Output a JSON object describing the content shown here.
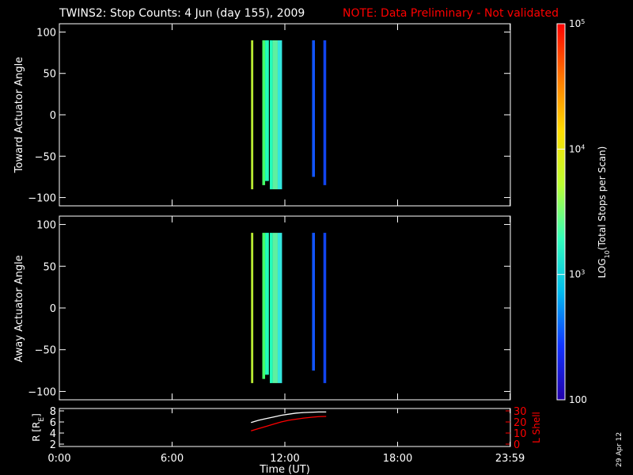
{
  "title": {
    "main": "TWINS2: Stop Counts:  4 Jun (day 155), 2009",
    "note": "NOTE: Data Preliminary - Not validated"
  },
  "side_label": "29 Apr 12",
  "colors": {
    "background": "#000000",
    "axes": "#ffffff",
    "note": "#ff0000",
    "r_line": "#ffffff",
    "l_shell_line": "#ff0000"
  },
  "chart_data": [
    {
      "type": "heatmap",
      "ylabel": "Toward Actuator Angle",
      "ylim": [
        -110,
        110
      ],
      "yticks": [
        100,
        50,
        0,
        -50,
        -100
      ],
      "xlim": [
        0,
        24
      ],
      "blocks": [
        {
          "t0": 10.2,
          "t1": 10.32,
          "a0": -90,
          "a1": 90,
          "color": "#b9ea33"
        },
        {
          "t0": 10.8,
          "t1": 10.95,
          "a0": -85,
          "a1": 90,
          "color": "#44ff66"
        },
        {
          "t0": 10.95,
          "t1": 11.15,
          "a0": -80,
          "a1": 90,
          "color": "#22ffbb"
        },
        {
          "t0": 11.2,
          "t1": 11.35,
          "a0": -90,
          "a1": 90,
          "color": "#22ffbb"
        },
        {
          "t0": 11.35,
          "t1": 11.62,
          "a0": -90,
          "a1": 90,
          "color": "#5ef0a0"
        },
        {
          "t0": 11.62,
          "t1": 11.85,
          "a0": -90,
          "a1": 90,
          "color": "#33e6dd"
        },
        {
          "t0": 13.45,
          "t1": 13.6,
          "a0": -75,
          "a1": 90,
          "color": "#1155ff"
        },
        {
          "t0": 14.05,
          "t1": 14.2,
          "a0": -85,
          "a1": 90,
          "color": "#1144ee"
        }
      ]
    },
    {
      "type": "heatmap",
      "ylabel": "Away Actuator Angle",
      "ylim": [
        -110,
        110
      ],
      "yticks": [
        100,
        50,
        0,
        -50,
        -100
      ],
      "xlim": [
        0,
        24
      ],
      "blocks": [
        {
          "t0": 10.2,
          "t1": 10.32,
          "a0": -90,
          "a1": 90,
          "color": "#b9ea33"
        },
        {
          "t0": 10.8,
          "t1": 10.95,
          "a0": -85,
          "a1": 90,
          "color": "#44ff66"
        },
        {
          "t0": 10.95,
          "t1": 11.15,
          "a0": -80,
          "a1": 90,
          "color": "#22ffbb"
        },
        {
          "t0": 11.2,
          "t1": 11.35,
          "a0": -90,
          "a1": 90,
          "color": "#22ffbb"
        },
        {
          "t0": 11.35,
          "t1": 11.62,
          "a0": -90,
          "a1": 90,
          "color": "#5ef0a0"
        },
        {
          "t0": 11.62,
          "t1": 11.85,
          "a0": -90,
          "a1": 90,
          "color": "#33e6dd"
        },
        {
          "t0": 13.45,
          "t1": 13.6,
          "a0": -75,
          "a1": 90,
          "color": "#1155ff"
        },
        {
          "t0": 14.05,
          "t1": 14.2,
          "a0": -90,
          "a1": 90,
          "color": "#1144ee"
        }
      ]
    },
    {
      "type": "line",
      "ylabel": "R [R",
      "ylabel_sub": "E",
      "ylabel_close": "]",
      "ylim": [
        2,
        8
      ],
      "yticks": [
        2,
        4,
        6,
        8
      ],
      "y2label": "L Shell",
      "y2lim": [
        0,
        30
      ],
      "y2ticks": [
        0,
        10,
        20,
        30
      ],
      "xlabel": "Time (UT)",
      "xticks": [
        {
          "t": 0,
          "label": "0:00"
        },
        {
          "t": 6,
          "label": "6:00"
        },
        {
          "t": 12,
          "label": "12:00"
        },
        {
          "t": 18,
          "label": "18:00"
        },
        {
          "t": 23.983,
          "label": "23:59"
        }
      ],
      "xlim": [
        0,
        24
      ],
      "series": [
        {
          "axis": "left",
          "color": "#ffffff",
          "x": [
            10.2,
            10.6,
            11.0,
            11.4,
            11.8,
            12.2,
            12.6,
            13.0,
            13.4,
            13.8,
            14.2
          ],
          "y": [
            5.9,
            6.3,
            6.6,
            6.9,
            7.2,
            7.4,
            7.6,
            7.7,
            7.75,
            7.8,
            7.8
          ]
        },
        {
          "axis": "right",
          "color": "#ff0000",
          "x": [
            10.2,
            10.6,
            11.0,
            11.4,
            11.8,
            12.2,
            12.6,
            13.0,
            13.4,
            13.8,
            14.2
          ],
          "y": [
            12,
            14,
            16,
            18,
            20,
            21.5,
            22.5,
            23.5,
            24.2,
            24.8,
            25
          ]
        }
      ]
    }
  ],
  "colorbar": {
    "label_prefix": "LOG",
    "label_sub": "10",
    "label_suffix": "(Total Stops per Scan)",
    "ticks": [
      {
        "base": "10",
        "exp": "5",
        "v": 5
      },
      {
        "base": "10",
        "exp": "4",
        "v": 4
      },
      {
        "base": "10",
        "exp": "3",
        "v": 3
      },
      {
        "base": "100",
        "exp": "",
        "v": 2
      }
    ],
    "range": [
      2,
      5
    ],
    "stops": [
      "#2200aa",
      "#1133ff",
      "#00bbee",
      "#33ffbb",
      "#bbff33",
      "#ffdd00",
      "#ff7700",
      "#ff0000"
    ]
  }
}
